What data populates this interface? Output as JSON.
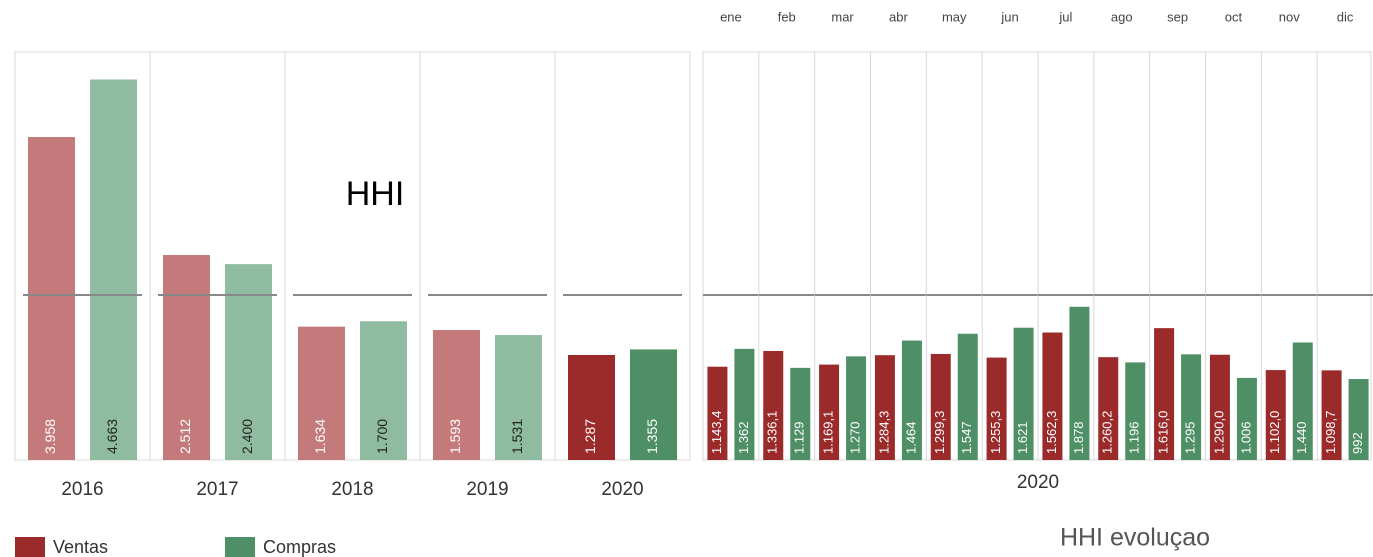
{
  "chart_data": [
    {
      "type": "bar",
      "annotation": "HHI",
      "categories": [
        "2016",
        "2017",
        "2018",
        "2019",
        "2020"
      ],
      "ylim": [
        0,
        5000
      ],
      "series": [
        {
          "name": "Ventas",
          "color": "#9b2b2b",
          "colors": [
            "#c47a7a",
            "#c47a7a",
            "#c47a7a",
            "#c47a7a",
            "#9b2b2b"
          ],
          "values": [
            3958,
            2512,
            1634,
            1593,
            1287
          ],
          "value_labels": [
            "3.958",
            "2.512",
            "1.634",
            "1.593",
            "1.287"
          ]
        },
        {
          "name": "Compras",
          "color": "#4e8f66",
          "colors": [
            "#8fbba0",
            "#8fbba0",
            "#8fbba0",
            "#8fbba0",
            "#4e8f66"
          ],
          "values": [
            4663,
            2400,
            1700,
            1531,
            1355
          ],
          "value_labels": [
            "4.663",
            "2.400",
            "1.700",
            "1.531",
            "1.355"
          ]
        }
      ]
    },
    {
      "type": "bar",
      "annotation": "HHI evoluçao",
      "x_label": "2020",
      "categories": [
        "ene",
        "feb",
        "mar",
        "abr",
        "may",
        "jun",
        "jul",
        "ago",
        "sep",
        "oct",
        "nov",
        "dic"
      ],
      "ylim": [
        0,
        5000
      ],
      "series": [
        {
          "name": "Ventas",
          "color": "#9b2b2b",
          "values": [
            1143.4,
            1336.1,
            1169.1,
            1284.3,
            1299.3,
            1255.3,
            1562.3,
            1260.2,
            1616.0,
            1290.0,
            1102.0,
            1098.7
          ],
          "value_labels": [
            "1.143,4",
            "1.336,1",
            "1.169,1",
            "1.284,3",
            "1.299,3",
            "1.255,3",
            "1.562,3",
            "1.260,2",
            "1.616,0",
            "1.290,0",
            "1.102,0",
            "1.098,7"
          ]
        },
        {
          "name": "Compras",
          "color": "#4e8f66",
          "values": [
            1362,
            1129,
            1270,
            1464,
            1547,
            1621,
            1878,
            1196,
            1295,
            1006,
            1440,
            992
          ],
          "value_labels": [
            "1.362",
            "1.129",
            "1.270",
            "1.464",
            "1.547",
            "1.621",
            "1.878",
            "1.196",
            "1.295",
            "1.006",
            "1.440",
            "992"
          ]
        }
      ]
    }
  ]
}
